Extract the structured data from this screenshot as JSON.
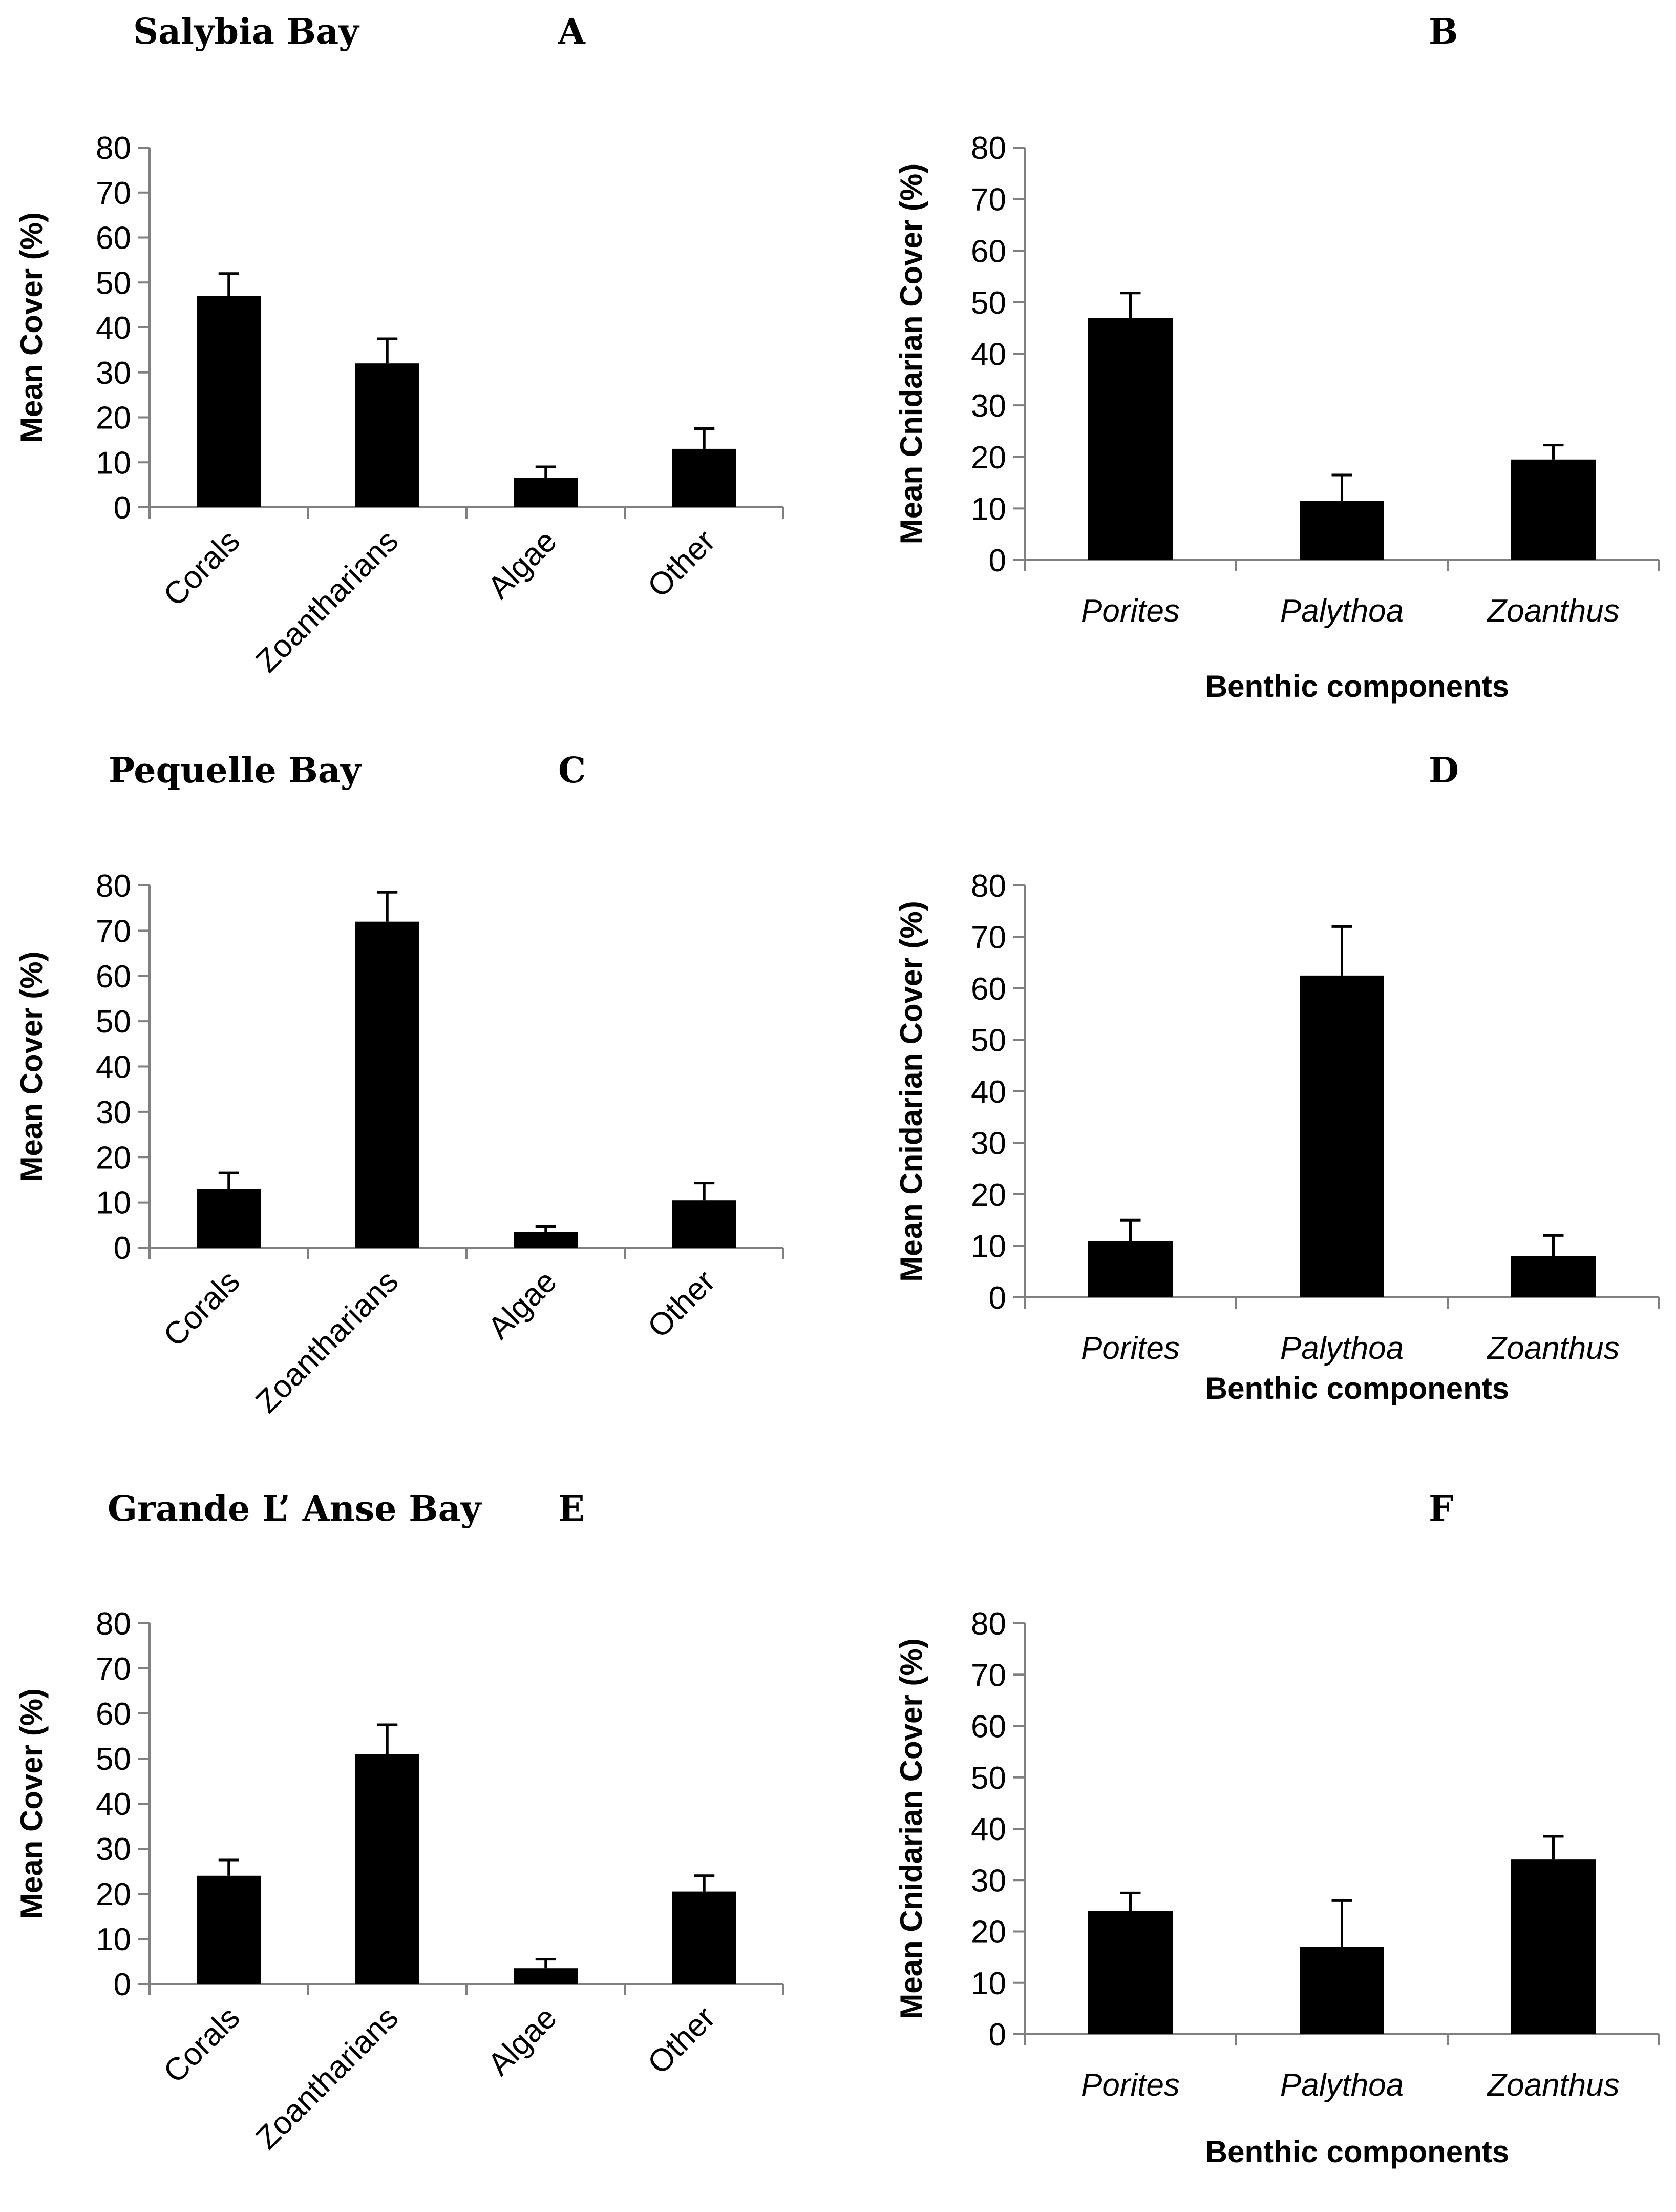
{
  "chart_data": [
    {
      "panel": "A",
      "site": "Salybia Bay",
      "type": "bar",
      "categories": [
        "Corals",
        "Zoantharians",
        "Algae",
        "Other"
      ],
      "values": [
        47,
        32,
        6.5,
        13
      ],
      "errors": [
        5,
        5.5,
        2.5,
        4.5
      ],
      "ylabel": "Mean Cover (%)",
      "xlabel": "",
      "ylim": [
        0,
        80
      ],
      "yticks": [
        "0",
        "10",
        "20",
        "30",
        "40",
        "50",
        "60",
        "70",
        "80"
      ]
    },
    {
      "panel": "B",
      "site": "",
      "type": "bar",
      "categories": [
        "Porites",
        "Palythoa",
        "Zoanthus"
      ],
      "values": [
        47,
        11.5,
        19.5
      ],
      "errors": [
        4.8,
        5,
        2.8
      ],
      "ylabel": "Mean Cnidarian Cover (%)",
      "xlabel": "Benthic components",
      "ylim": [
        0,
        80
      ],
      "yticks": [
        "0",
        "10",
        "20",
        "30",
        "40",
        "50",
        "60",
        "70",
        "80"
      ]
    },
    {
      "panel": "C",
      "site": "Pequelle Bay",
      "type": "bar",
      "categories": [
        "Corals",
        "Zoantharians",
        "Algae",
        "Other"
      ],
      "values": [
        13,
        72,
        3.5,
        10.5
      ],
      "errors": [
        3.5,
        6.5,
        1.2,
        3.8
      ],
      "ylabel": "Mean Cover (%)",
      "xlabel": "",
      "ylim": [
        0,
        80
      ],
      "yticks": [
        "0",
        "10",
        "20",
        "30",
        "40",
        "50",
        "60",
        "70",
        "80"
      ]
    },
    {
      "panel": "D",
      "site": "",
      "type": "bar",
      "categories": [
        "Porites",
        "Palythoa",
        "Zoanthus"
      ],
      "values": [
        11,
        62.5,
        8
      ],
      "errors": [
        4,
        9.5,
        4
      ],
      "ylabel": "Mean Cnidarian Cover (%)",
      "xlabel": "Benthic components",
      "ylim": [
        0,
        80
      ],
      "yticks": [
        "0",
        "10",
        "20",
        "30",
        "40",
        "50",
        "60",
        "70",
        "80"
      ]
    },
    {
      "panel": "E",
      "site": "Grande L’ Anse Bay",
      "type": "bar",
      "categories": [
        "Corals",
        "Zoantharians",
        "Algae",
        "Other"
      ],
      "values": [
        24,
        51,
        3.5,
        20.5
      ],
      "errors": [
        3.5,
        6.5,
        2,
        3.5
      ],
      "ylabel": "Mean Cover (%)",
      "xlabel": "",
      "ylim": [
        0,
        80
      ],
      "yticks": [
        "0",
        "10",
        "20",
        "30",
        "40",
        "50",
        "60",
        "70",
        "80"
      ]
    },
    {
      "panel": "F",
      "site": "",
      "type": "bar",
      "categories": [
        "Porites",
        "Palythoa",
        "Zoanthus"
      ],
      "values": [
        24,
        17,
        34
      ],
      "errors": [
        3.5,
        9,
        4.5
      ],
      "ylabel": "Mean Cnidarian Cover (%)",
      "xlabel": "Benthic components",
      "ylim": [
        0,
        80
      ],
      "yticks": [
        "0",
        "10",
        "20",
        "30",
        "40",
        "50",
        "60",
        "70",
        "80"
      ]
    }
  ],
  "colors": {
    "bar": "#000000",
    "axis": "#808080"
  }
}
